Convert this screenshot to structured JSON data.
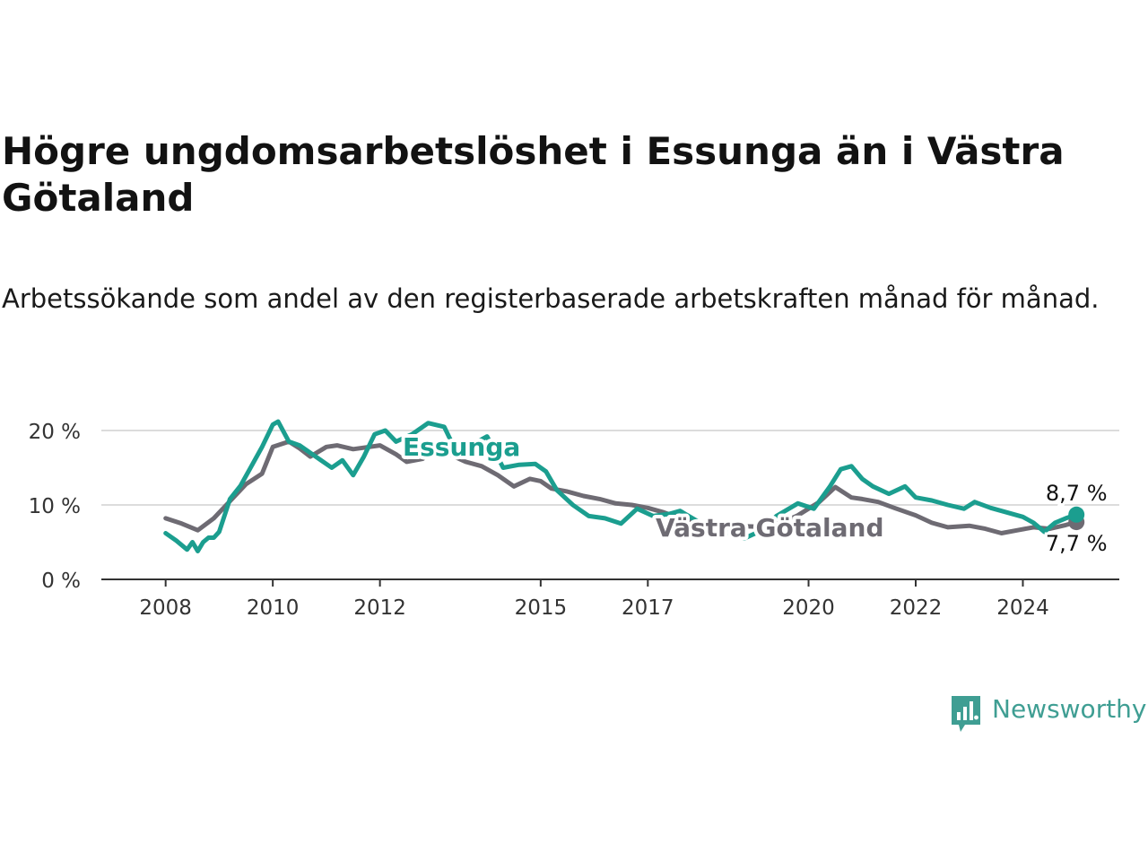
{
  "title": "Högre ungdomsarbetslöshet i Essunga än i Västra Götaland",
  "subtitle": "Arbetssökande som andel av den registerbaserade arbetskraften månad för månad.",
  "brand": {
    "name": "Newsworthy",
    "color": "#3f9e93"
  },
  "chart_data": {
    "type": "line",
    "y_ticks": [
      "0 %",
      "10 %",
      "20 %"
    ],
    "y_tick_values": [
      0,
      10,
      20
    ],
    "x_ticks": [
      "2008",
      "2010",
      "2012",
      "2015",
      "2017",
      "2020",
      "2022",
      "2024"
    ],
    "x_tick_values": [
      2008,
      2010,
      2012,
      2015,
      2017,
      2020,
      2022,
      2024
    ],
    "xlim": [
      2006.8,
      2025.8
    ],
    "ylim": [
      0,
      22
    ],
    "grid": true,
    "series": [
      {
        "name": "Västra Götaland",
        "color": "#6e6b73",
        "end_label": "7,7 %",
        "x": [
          2008.0,
          2008.3,
          2008.6,
          2008.9,
          2009.2,
          2009.5,
          2009.8,
          2010.0,
          2010.3,
          2010.5,
          2010.7,
          2011.0,
          2011.2,
          2011.5,
          2011.8,
          2012.0,
          2012.3,
          2012.5,
          2012.8,
          2013.0,
          2013.3,
          2013.6,
          2013.9,
          2014.2,
          2014.5,
          2014.8,
          2015.0,
          2015.2,
          2015.5,
          2015.8,
          2016.1,
          2016.4,
          2016.7,
          2017.0,
          2017.3,
          2017.6,
          2018.0,
          2018.5,
          2019.0,
          2019.5,
          2019.8,
          2020.2,
          2020.5,
          2020.8,
          2021.0,
          2021.3,
          2021.6,
          2022.0,
          2022.3,
          2022.6,
          2023.0,
          2023.3,
          2023.6,
          2023.9,
          2024.2,
          2024.5,
          2024.8,
          2025.0
        ],
        "y": [
          8.2,
          7.5,
          6.6,
          8.2,
          10.5,
          12.8,
          14.2,
          17.8,
          18.5,
          17.6,
          16.5,
          17.8,
          18.0,
          17.5,
          17.8,
          18.0,
          16.8,
          15.8,
          16.2,
          17.5,
          16.8,
          15.8,
          15.2,
          14.0,
          12.5,
          13.5,
          13.2,
          12.2,
          11.8,
          11.2,
          10.8,
          10.2,
          10.0,
          9.6,
          9.0,
          8.2,
          7.6,
          7.2,
          7.1,
          7.6,
          8.6,
          10.4,
          12.4,
          11.0,
          10.8,
          10.4,
          9.6,
          8.6,
          7.6,
          7.0,
          7.2,
          6.8,
          6.2,
          6.6,
          7.0,
          6.8,
          7.3,
          7.7
        ]
      },
      {
        "name": "Essunga",
        "color": "#1b9e8f",
        "end_label": "8,7 %",
        "x": [
          2008.0,
          2008.2,
          2008.4,
          2008.5,
          2008.6,
          2008.7,
          2008.8,
          2008.9,
          2009.0,
          2009.2,
          2009.4,
          2009.6,
          2009.8,
          2010.0,
          2010.1,
          2010.3,
          2010.5,
          2010.7,
          2010.9,
          2011.1,
          2011.3,
          2011.5,
          2011.7,
          2011.9,
          2012.1,
          2012.3,
          2012.6,
          2012.9,
          2013.2,
          2013.4,
          2013.7,
          2014.0,
          2014.3,
          2014.6,
          2014.9,
          2015.1,
          2015.3,
          2015.6,
          2015.9,
          2016.2,
          2016.5,
          2016.8,
          2017.1,
          2017.4,
          2017.6,
          2018.0,
          2018.4,
          2018.8,
          2019.1,
          2019.4,
          2019.8,
          2020.1,
          2020.4,
          2020.6,
          2020.8,
          2021.0,
          2021.2,
          2021.5,
          2021.8,
          2022.0,
          2022.3,
          2022.6,
          2022.9,
          2023.1,
          2023.4,
          2023.7,
          2024.0,
          2024.2,
          2024.4,
          2024.6,
          2024.8,
          2025.0
        ],
        "y": [
          6.2,
          5.2,
          4.0,
          5.0,
          3.8,
          5.0,
          5.6,
          5.6,
          6.4,
          10.8,
          12.6,
          15.2,
          17.8,
          20.8,
          21.2,
          18.5,
          18.0,
          17.0,
          16.0,
          15.0,
          16.0,
          14.0,
          16.5,
          19.5,
          20.0,
          18.5,
          19.5,
          21.0,
          20.5,
          17.5,
          18.0,
          19.2,
          15.0,
          15.4,
          15.5,
          14.5,
          12.0,
          10.0,
          8.5,
          8.2,
          7.5,
          9.5,
          8.5,
          8.8,
          9.2,
          7.5,
          6.5,
          5.5,
          6.5,
          8.5,
          10.2,
          9.5,
          12.5,
          14.8,
          15.2,
          13.5,
          12.5,
          11.5,
          12.5,
          11.0,
          10.6,
          10.0,
          9.5,
          10.4,
          9.6,
          9.0,
          8.4,
          7.6,
          6.4,
          7.6,
          8.2,
          8.7
        ]
      }
    ]
  }
}
